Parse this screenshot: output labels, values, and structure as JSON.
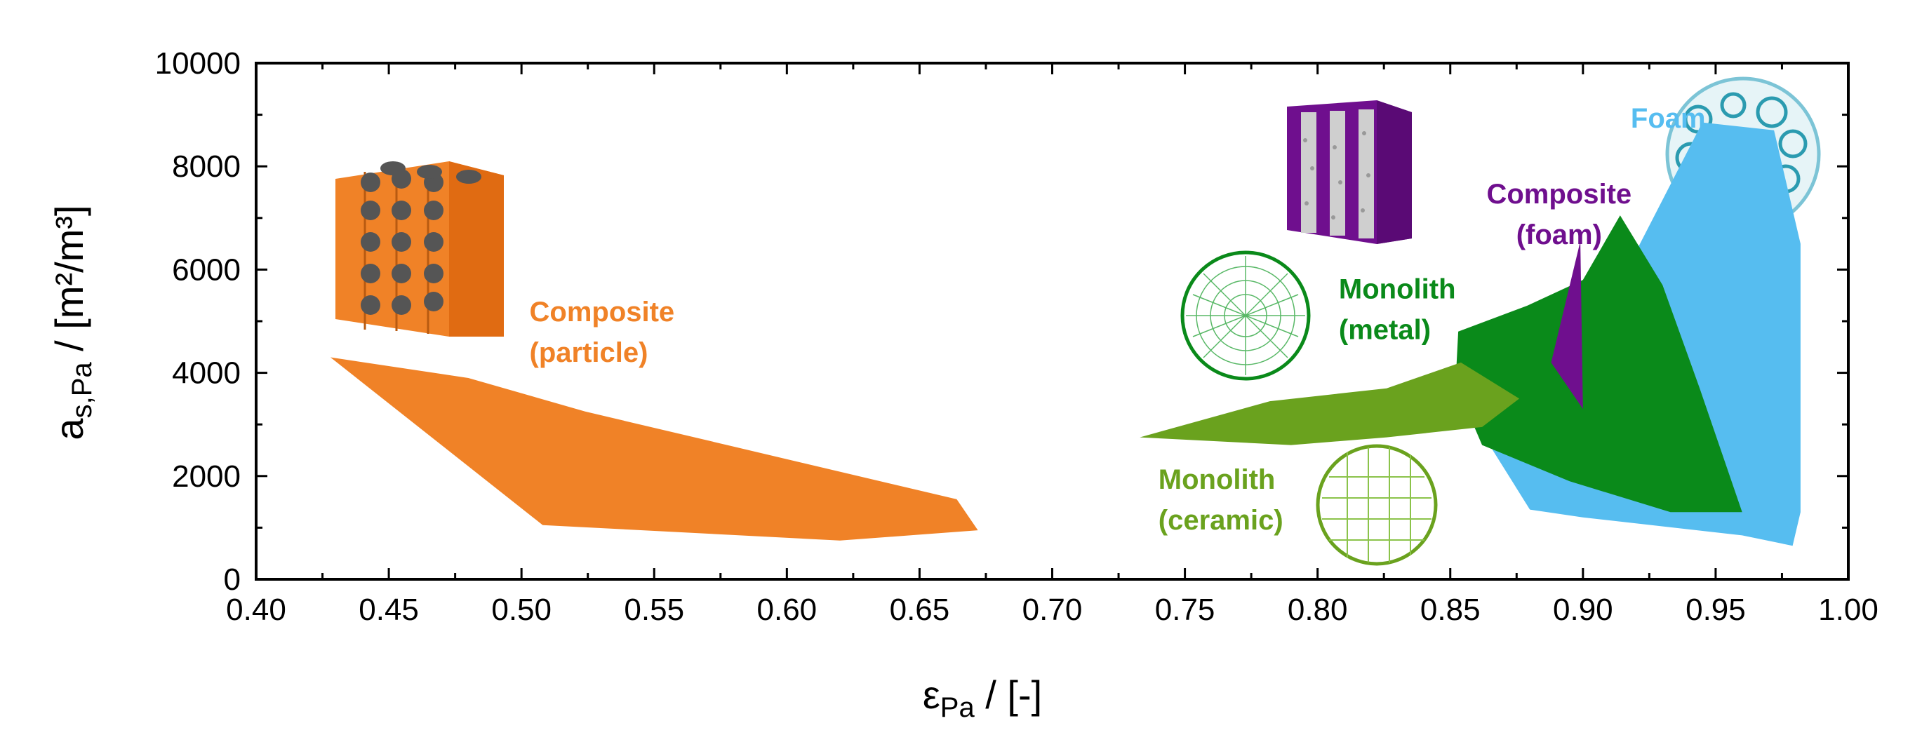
{
  "chart_data": {
    "type": "area",
    "title": "",
    "xlabel": {
      "main": "ε",
      "sub": "Pa",
      "suffix": " / [-]"
    },
    "ylabel": {
      "main": "a",
      "sub": "s,Pa",
      "suffix": " / [m²/m³]"
    },
    "xlim": [
      0.4,
      1.0
    ],
    "ylim": [
      0,
      10000
    ],
    "xticks": [
      0.4,
      0.45,
      0.5,
      0.55,
      0.6,
      0.65,
      0.7,
      0.75,
      0.8,
      0.85,
      0.9,
      0.95,
      1.0
    ],
    "xtick_labels": [
      "0.40",
      "0.45",
      "0.50",
      "0.55",
      "0.60",
      "0.65",
      "0.70",
      "0.75",
      "0.80",
      "0.85",
      "0.90",
      "0.95",
      "1.00"
    ],
    "yticks": [
      0,
      2000,
      4000,
      6000,
      8000,
      10000
    ],
    "ytick_labels": [
      "0",
      "2000",
      "4000",
      "6000",
      "8000",
      "10000"
    ],
    "grid": false,
    "series": [
      {
        "name": "Foam",
        "label_lines": [
          "Foam"
        ],
        "color": "#56bdf0",
        "label_at": [
          0.918,
          8750
        ],
        "points": [
          [
            0.858,
            3800
          ],
          [
            0.895,
            3850
          ],
          [
            0.945,
            8850
          ],
          [
            0.972,
            8700
          ],
          [
            0.982,
            6500
          ],
          [
            0.982,
            1300
          ],
          [
            0.979,
            650
          ],
          [
            0.96,
            850
          ],
          [
            0.9,
            1200
          ],
          [
            0.88,
            1350
          ],
          [
            0.866,
            2500
          ]
        ]
      },
      {
        "name": "Monolith (metal)",
        "label_lines": [
          "Monolith",
          "(metal)"
        ],
        "color": "#0a8a1a",
        "label_at": [
          0.808,
          5440
        ],
        "points": [
          [
            0.853,
            4800
          ],
          [
            0.879,
            5300
          ],
          [
            0.9,
            5800
          ],
          [
            0.914,
            7050
          ],
          [
            0.93,
            5700
          ],
          [
            0.944,
            3700
          ],
          [
            0.96,
            1300
          ],
          [
            0.933,
            1300
          ],
          [
            0.895,
            1900
          ],
          [
            0.862,
            2600
          ],
          [
            0.852,
            3800
          ]
        ]
      },
      {
        "name": "Monolith (ceramic)",
        "label_lines": [
          "Monolith",
          "(ceramic)"
        ],
        "color": "#6aa21e",
        "label_at": [
          0.74,
          1750
        ],
        "points": [
          [
            0.733,
            2750
          ],
          [
            0.782,
            3450
          ],
          [
            0.826,
            3700
          ],
          [
            0.854,
            4200
          ],
          [
            0.876,
            3500
          ],
          [
            0.862,
            2950
          ],
          [
            0.826,
            2750
          ],
          [
            0.79,
            2600
          ]
        ]
      },
      {
        "name": "Composite (foam)",
        "label_lines": [
          "Composite",
          "(foam)"
        ],
        "color": "#6f0f8e",
        "label_at": [
          0.891,
          7280
        ],
        "points": [
          [
            0.899,
            6550
          ],
          [
            0.9,
            3300
          ],
          [
            0.888,
            4200
          ]
        ]
      },
      {
        "name": "Composite (particle)",
        "label_lines": [
          "Composite",
          "(particle)"
        ],
        "color": "#f08227",
        "label_at": [
          0.503,
          5000
        ],
        "points": [
          [
            0.428,
            4300
          ],
          [
            0.48,
            3900
          ],
          [
            0.524,
            3250
          ],
          [
            0.664,
            1550
          ],
          [
            0.672,
            950
          ],
          [
            0.62,
            750
          ],
          [
            0.508,
            1050
          ]
        ]
      }
    ]
  }
}
